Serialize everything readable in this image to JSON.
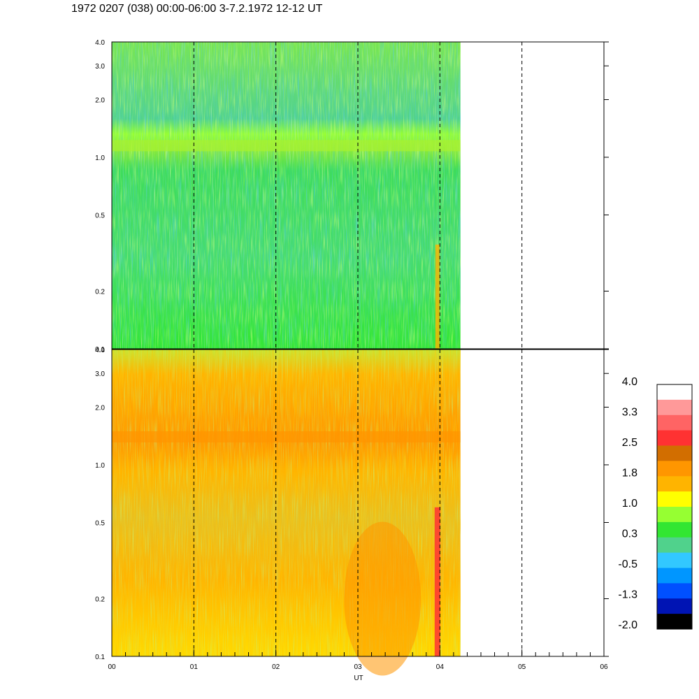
{
  "title": "1972 0207 (038) 00:00-06:00 3-7.2.1972  12-12 UT",
  "chart_data": [
    {
      "type": "heatmap",
      "panel": "upper",
      "x_axis": {
        "range": [
          0,
          6
        ],
        "unit": "UT hours",
        "data_end": 4.25
      },
      "y_axis": {
        "scale": "log",
        "range": [
          0.1,
          4.0
        ],
        "tick_values": [
          0.1,
          0.2,
          0.5,
          1.0,
          2.0,
          3.0,
          4.0
        ],
        "tick_labels": [
          "0.1",
          "0.2",
          "0.5",
          "1.0",
          "2.0",
          "3.0",
          "4.0"
        ]
      },
      "dashed_lines_x": [
        1,
        2,
        3,
        4,
        5
      ],
      "features": {
        "band_frequency": 1.15,
        "dominant_level": 0.3
      }
    },
    {
      "type": "heatmap",
      "panel": "lower",
      "x_axis": {
        "range": [
          0,
          6
        ],
        "unit": "UT hours",
        "data_end": 4.25
      },
      "y_axis": {
        "scale": "log",
        "range": [
          0.1,
          4.0
        ],
        "tick_values": [
          0.1,
          0.2,
          0.5,
          1.0,
          2.0,
          3.0,
          4.0
        ],
        "tick_labels": [
          "0.1",
          "0.2",
          "0.5",
          "1.0",
          "2.0",
          "3.0",
          "4.0"
        ]
      },
      "dashed_lines_x": [
        1,
        2,
        3,
        4,
        5
      ],
      "features": {
        "band_frequency": 1.4,
        "dominant_level": 1.5,
        "intense_column_x": 3.97
      }
    }
  ],
  "x_tick_labels": [
    "00",
    "01",
    "02",
    "03",
    "04",
    "05",
    "06"
  ],
  "xlabel": "UT",
  "colorbar": {
    "labels": [
      "4.0",
      "3.3",
      "2.5",
      "1.8",
      "1.0",
      "0.3",
      "-0.5",
      "-1.3",
      "-2.0"
    ],
    "colors": [
      "#ffffff",
      "#ff9999",
      "#ff6464",
      "#ff3232",
      "#d26e00",
      "#ff9600",
      "#ffb400",
      "#ffff00",
      "#96ff32",
      "#32e632",
      "#50d28c",
      "#32c8ff",
      "#0096ff",
      "#0050ff",
      "#0014b4",
      "#000000"
    ]
  }
}
